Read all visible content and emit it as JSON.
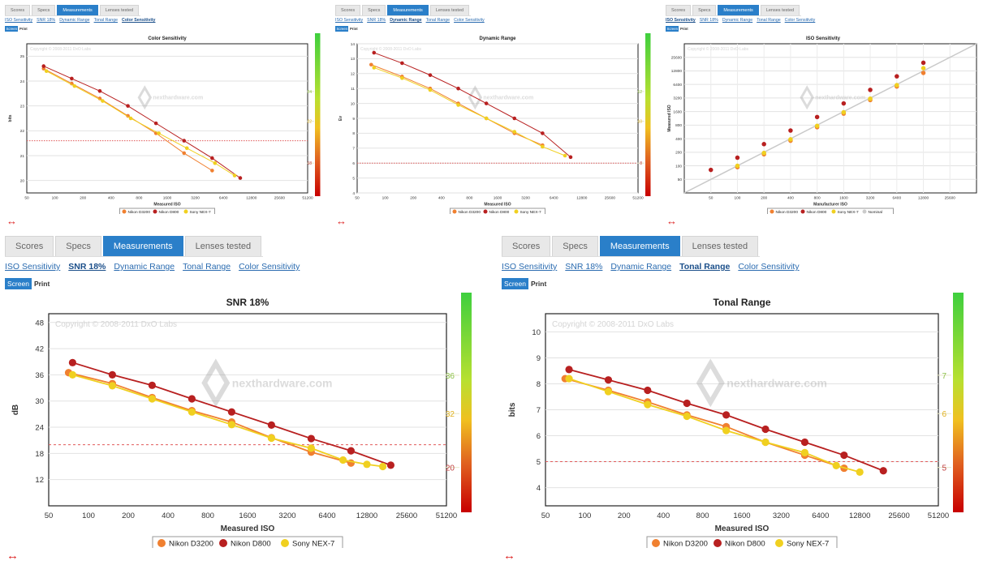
{
  "tabs": [
    "Scores",
    "Specs",
    "Measurements",
    "Lenses tested"
  ],
  "active_tab": "Measurements",
  "sublinks": [
    "ISO Sensitivity",
    "SNR 18%",
    "Dynamic Range",
    "Tonal Range",
    "Color Sensitivity"
  ],
  "screen_label": "Screen",
  "print_label": "Print",
  "watermark": "Copyright © 2008-2011 DxO Labs",
  "brand_watermark": "nexthardware.com",
  "expand_glyph": "↔",
  "colors": {
    "d3200": "#f08030",
    "d800": "#b82020",
    "nex7": "#f0d020",
    "tab_active": "#2a7fc9"
  },
  "legend": [
    "Nikon D3200",
    "Nikon D800",
    "Sony NEX-7"
  ],
  "chart_data": [
    {
      "id": "color",
      "type": "line",
      "active_sub": "Color Sensitivity",
      "title": "Color Sensitivity",
      "xlabel": "Measured ISO",
      "ylabel": "bits",
      "xticks": [
        "50",
        "100",
        "200",
        "400",
        "800",
        "1600",
        "3200",
        "6400",
        "12800",
        "25600",
        "51200"
      ],
      "yticks": [
        "20",
        "21",
        "22",
        "23",
        "24",
        "25"
      ],
      "ylim": [
        19.5,
        25.5
      ],
      "hline": 21.6,
      "scale_labels": [
        "24",
        "22",
        "18"
      ],
      "series": [
        {
          "name": "Nikon D3200",
          "x": [
            0.6,
            1.6,
            2.6,
            3.6,
            4.6,
            5.6,
            6.6
          ],
          "y": [
            24.5,
            23.9,
            23.3,
            22.6,
            21.9,
            21.1,
            20.4
          ]
        },
        {
          "name": "Nikon D800",
          "x": [
            0.6,
            1.6,
            2.6,
            3.6,
            4.6,
            5.6,
            6.6,
            7.6
          ],
          "y": [
            24.6,
            24.1,
            23.6,
            23.0,
            22.3,
            21.6,
            20.9,
            20.1
          ]
        },
        {
          "name": "Sony NEX-7",
          "x": [
            0.7,
            1.7,
            2.7,
            3.7,
            4.7,
            5.7,
            6.7,
            7.4
          ],
          "y": [
            24.4,
            23.8,
            23.2,
            22.5,
            21.9,
            21.3,
            20.7,
            20.2
          ]
        }
      ]
    },
    {
      "id": "dr",
      "type": "line",
      "active_sub": "Dynamic Range",
      "title": "Dynamic Range",
      "xlabel": "Measured ISO",
      "ylabel": "Ev",
      "xticks": [
        "50",
        "100",
        "200",
        "400",
        "800",
        "1600",
        "3200",
        "6400",
        "12800",
        "25600",
        "51200"
      ],
      "yticks": [
        "4",
        "5",
        "6",
        "7",
        "8",
        "9",
        "10",
        "11",
        "12",
        "13",
        "14"
      ],
      "ylim": [
        4,
        14
      ],
      "hline": 6,
      "scale_labels": [
        "12",
        "10",
        "8"
      ],
      "series": [
        {
          "name": "Nikon D3200",
          "x": [
            0.5,
            1.6,
            2.6,
            3.6,
            4.6,
            5.6,
            6.6
          ],
          "y": [
            12.6,
            11.8,
            11.0,
            10.0,
            9.0,
            8.0,
            7.2
          ]
        },
        {
          "name": "Nikon D800",
          "x": [
            0.6,
            1.6,
            2.6,
            3.6,
            4.6,
            5.6,
            6.6,
            7.6
          ],
          "y": [
            13.4,
            12.7,
            11.9,
            11.0,
            10.0,
            9.0,
            8.0,
            6.4
          ]
        },
        {
          "name": "Sony NEX-7",
          "x": [
            0.6,
            1.6,
            2.6,
            3.6,
            4.6,
            5.6,
            6.6,
            7.4
          ],
          "y": [
            12.4,
            11.7,
            10.9,
            9.9,
            9.0,
            8.1,
            7.1,
            6.5
          ]
        }
      ]
    },
    {
      "id": "iso",
      "type": "scatter",
      "active_sub": "ISO Sensitivity",
      "title": "ISO Sensitivity",
      "xlabel": "Manufacturer ISO",
      "ylabel": "Measured ISO",
      "xticks": [
        "50",
        "100",
        "200",
        "400",
        "800",
        "1600",
        "3200",
        "6400",
        "12800",
        "25600"
      ],
      "yticks": [
        "50",
        "100",
        "200",
        "400",
        "800",
        "1600",
        "3200",
        "6400",
        "12800",
        "25600"
      ],
      "legend_extra": "Nominal",
      "series": [
        {
          "name": "Nikon D3200",
          "x": [
            1,
            2,
            3,
            4,
            5,
            6,
            7,
            8
          ],
          "y": [
            0.9,
            1.85,
            2.85,
            3.85,
            4.85,
            5.85,
            6.85,
            7.85
          ]
        },
        {
          "name": "Nikon D800",
          "x": [
            0,
            1,
            2,
            3,
            4,
            5,
            6,
            7,
            8
          ],
          "y": [
            0.7,
            1.6,
            2.6,
            3.6,
            4.6,
            5.6,
            6.6,
            7.6,
            8.6
          ]
        },
        {
          "name": "Sony NEX-7",
          "x": [
            1,
            2,
            3,
            4,
            5,
            6,
            7,
            8
          ],
          "y": [
            1.0,
            1.95,
            2.95,
            3.95,
            4.95,
            5.95,
            6.95,
            8.2
          ]
        }
      ]
    },
    {
      "id": "snr",
      "type": "line",
      "active_sub": "SNR 18%",
      "title": "SNR 18%",
      "xlabel": "Measured ISO",
      "ylabel": "dB",
      "xticks": [
        "50",
        "100",
        "200",
        "400",
        "800",
        "1600",
        "3200",
        "6400",
        "12800",
        "25600",
        "51200"
      ],
      "yticks": [
        "12",
        "18",
        "24",
        "30",
        "36",
        "42",
        "48"
      ],
      "ylim": [
        6,
        50
      ],
      "hline": 20,
      "scale_labels": [
        "36",
        "32",
        "20"
      ],
      "series": [
        {
          "name": "Nikon D3200",
          "x": [
            0.5,
            1.6,
            2.6,
            3.6,
            4.6,
            5.6,
            6.6,
            7.6
          ],
          "y": [
            36.5,
            34.0,
            30.8,
            27.8,
            25.2,
            21.6,
            18.3,
            15.8
          ]
        },
        {
          "name": "Nikon D800",
          "x": [
            0.6,
            1.6,
            2.6,
            3.6,
            4.6,
            5.6,
            6.6,
            7.6,
            8.6
          ],
          "y": [
            38.8,
            36.0,
            33.6,
            30.5,
            27.5,
            24.5,
            21.4,
            18.6,
            15.3
          ]
        },
        {
          "name": "Sony NEX-7",
          "x": [
            0.6,
            1.6,
            2.6,
            3.6,
            4.6,
            5.6,
            6.6,
            7.4,
            8.0,
            8.4
          ],
          "y": [
            36.0,
            33.5,
            30.5,
            27.5,
            24.6,
            21.5,
            19.2,
            16.5,
            15.5,
            15.0
          ]
        }
      ]
    },
    {
      "id": "tonal",
      "type": "line",
      "active_sub": "Tonal Range",
      "title": "Tonal Range",
      "xlabel": "Measured ISO",
      "ylabel": "bits",
      "xticks": [
        "50",
        "100",
        "200",
        "400",
        "800",
        "1600",
        "3200",
        "6400",
        "12800",
        "25600",
        "51200"
      ],
      "yticks": [
        "4",
        "5",
        "6",
        "7",
        "8",
        "9",
        "10"
      ],
      "ylim": [
        3.3,
        10.7
      ],
      "hline": 5,
      "scale_labels": [
        "7",
        "6",
        "5"
      ],
      "series": [
        {
          "name": "Nikon D3200",
          "x": [
            0.5,
            1.6,
            2.6,
            3.6,
            4.6,
            5.6,
            6.6,
            7.6
          ],
          "y": [
            8.2,
            7.75,
            7.3,
            6.8,
            6.35,
            5.75,
            5.25,
            4.75
          ]
        },
        {
          "name": "Nikon D800",
          "x": [
            0.6,
            1.6,
            2.6,
            3.6,
            4.6,
            5.6,
            6.6,
            7.6,
            8.6
          ],
          "y": [
            8.55,
            8.15,
            7.75,
            7.25,
            6.8,
            6.25,
            5.75,
            5.25,
            4.65
          ]
        },
        {
          "name": "Sony NEX-7",
          "x": [
            0.6,
            1.6,
            2.6,
            3.6,
            4.6,
            5.6,
            6.6,
            7.4,
            8.0
          ],
          "y": [
            8.2,
            7.7,
            7.2,
            6.75,
            6.2,
            5.75,
            5.35,
            4.85,
            4.6
          ]
        }
      ]
    }
  ]
}
